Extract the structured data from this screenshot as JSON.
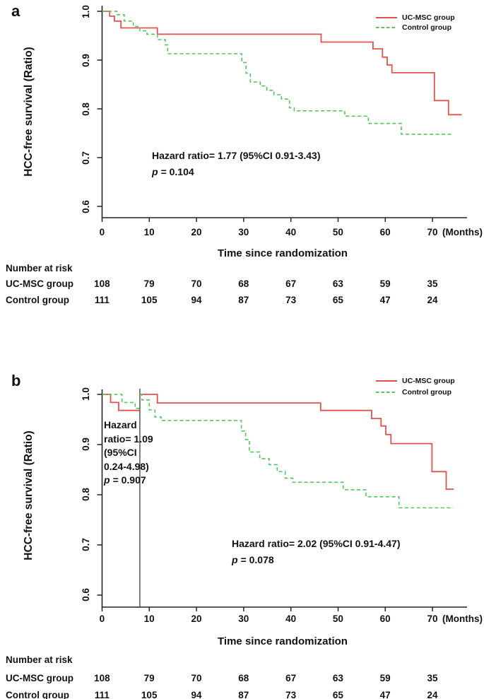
{
  "figure_labels": {
    "panel_a_letter": "a",
    "panel_b_letter": "b"
  },
  "legend": {
    "ucmsc": "UC-MSC group",
    "control": "Control group"
  },
  "axis_titles": {
    "y": "HCC-free survival (Ratio)",
    "x": "Time since randomization",
    "months": "(Months)"
  },
  "annotations": {
    "a": {
      "line1": "Hazard ratio= 1.77 (95%CI 0.91-3.43)",
      "p_label": "p",
      "p_value": "= 0.104"
    },
    "b_left": {
      "lines": [
        "Hazard",
        "ratio= 1.09",
        "(95%CI",
        "0.24-4.98)"
      ],
      "p_label": "p",
      "p_value": "= 0.907"
    },
    "b_right": {
      "line1": "Hazard ratio= 2.02 (95%CI 0.91-4.47)",
      "p_label": "p",
      "p_value": "= 0.078"
    }
  },
  "at_risk": {
    "title": "Number at risk",
    "rows": [
      {
        "label": "UC-MSC group",
        "values": [
          108,
          79,
          70,
          68,
          67,
          63,
          59,
          35
        ]
      },
      {
        "label": "Control group",
        "values": [
          111,
          105,
          94,
          87,
          73,
          65,
          47,
          24
        ]
      }
    ]
  },
  "chart_data": [
    {
      "type": "line",
      "subtype": "kaplan-meier-step",
      "panel": "a",
      "title": "a",
      "xlabel": "Time since randomization",
      "x_unit": "(Months)",
      "ylabel": "HCC-free survival (Ratio)",
      "x_ticks": [
        "0",
        "10",
        "20",
        "30",
        "40",
        "50",
        "60",
        "70"
      ],
      "y_ticks": [
        "1.0",
        "0.9",
        "0.8",
        "0.7",
        "0.6"
      ],
      "xlim": [
        0,
        77.5
      ],
      "ylim": [
        0.58,
        1.0
      ],
      "grid": false,
      "legend_position": "top-right",
      "annotations": [
        "Hazard ratio= 1.77 (95%CI 0.91-3.43)",
        "p = 0.104"
      ],
      "series": [
        {
          "name": "UC-MSC group",
          "color": "#e3524e",
          "line_style": "solid",
          "n": 108,
          "segments": [
            {
              "points": [
                [
                  0,
                  1.0
                ],
                [
                  1.6,
                  0.99
                ],
                [
                  2.6,
                  0.98
                ],
                [
                  4,
                  0.966
                ],
                [
                  11.7,
                  0.953
                ],
                [
                  46.4,
                  0.937
                ],
                [
                  57.4,
                  0.923
                ],
                [
                  59.4,
                  0.906
                ],
                [
                  60.4,
                  0.89
                ],
                [
                  61.4,
                  0.874
                ],
                [
                  70.4,
                  0.817
                ],
                [
                  73.4,
                  0.788
                ]
              ],
              "x_end": 76.2
            }
          ]
        },
        {
          "name": "Control group",
          "color": "#53c65c",
          "line_style": "dashed",
          "n": 111,
          "segments": [
            {
              "points": [
                [
                  0,
                  1.0
                ],
                [
                  3.1,
                  0.993
                ],
                [
                  4.7,
                  0.98
                ],
                [
                  6.6,
                  0.969
                ],
                [
                  8,
                  0.96
                ],
                [
                  9.5,
                  0.953
                ],
                [
                  11.7,
                  0.942
                ],
                [
                  13.4,
                  0.931
                ],
                [
                  13.9,
                  0.913
                ],
                [
                  29.6,
                  0.895
                ],
                [
                  30.5,
                  0.873
                ],
                [
                  31.4,
                  0.855
                ],
                [
                  33.5,
                  0.847
                ],
                [
                  34.9,
                  0.838
                ],
                [
                  36.4,
                  0.829
                ],
                [
                  38,
                  0.82
                ],
                [
                  39.7,
                  0.802
                ],
                [
                  40.7,
                  0.796
                ],
                [
                  51.4,
                  0.785
                ],
                [
                  56.4,
                  0.77
                ],
                [
                  63.4,
                  0.748
                ]
              ],
              "x_end": 74.4
            }
          ]
        }
      ]
    },
    {
      "type": "line",
      "subtype": "kaplan-meier-step-landmark",
      "panel": "b",
      "title": "b",
      "xlabel": "Time since randomization",
      "x_unit": "(Months)",
      "ylabel": "HCC-free survival (Ratio)",
      "x_ticks": [
        "0",
        "10",
        "20",
        "30",
        "40",
        "50",
        "60",
        "70"
      ],
      "y_ticks": [
        "1.0",
        "0.9",
        "0.8",
        "0.7",
        "0.6"
      ],
      "xlim": [
        0,
        77.5
      ],
      "ylim": [
        0.58,
        1.0
      ],
      "grid": false,
      "legend_position": "top-right",
      "reference_line_x": 8,
      "annotations": [
        "Hazard ratio= 1.09 (95%CI 0.24-4.98)",
        "p = 0.907",
        "Hazard ratio= 2.02 (95%CI 0.91-4.47)",
        "p = 0.078"
      ],
      "series": [
        {
          "name": "UC-MSC group",
          "color": "#e3524e",
          "line_style": "solid",
          "n": 108,
          "segments": [
            {
              "points": [
                [
                  0,
                  1.0
                ],
                [
                  1.8,
                  0.984
                ],
                [
                  3.5,
                  0.968
                ]
              ],
              "x_end": 8
            },
            {
              "points": [
                [
                  8,
                  1.0
                ],
                [
                  11.7,
                  0.983
                ],
                [
                  46.3,
                  0.968
                ],
                [
                  57.1,
                  0.952
                ],
                [
                  59.1,
                  0.937
                ],
                [
                  60.1,
                  0.92
                ],
                [
                  61.2,
                  0.902
                ],
                [
                  69.9,
                  0.846
                ],
                [
                  72.9,
                  0.811
                ]
              ],
              "x_end": 74.5
            }
          ]
        },
        {
          "name": "Control group",
          "color": "#53c65c",
          "line_style": "dashed",
          "n": 111,
          "segments": [
            {
              "points": [
                [
                  0,
                  1.0
                ],
                [
                  4.2,
                  0.984
                ],
                [
                  7,
                  0.972
                ]
              ],
              "x_end": 8
            },
            {
              "points": [
                [
                  8,
                  1.0
                ],
                [
                  8.4,
                  0.989
                ],
                [
                  10,
                  0.969
                ],
                [
                  11.2,
                  0.955
                ],
                [
                  12.5,
                  0.948
                ],
                [
                  29.5,
                  0.927
                ],
                [
                  30.4,
                  0.91
                ],
                [
                  31.2,
                  0.885
                ],
                [
                  33.4,
                  0.872
                ],
                [
                  35.4,
                  0.86
                ],
                [
                  37.1,
                  0.846
                ],
                [
                  38.8,
                  0.833
                ],
                [
                  40.4,
                  0.825
                ],
                [
                  51.1,
                  0.81
                ],
                [
                  55.9,
                  0.796
                ],
                [
                  62.9,
                  0.774
                ]
              ],
              "x_end": 74.4
            }
          ]
        }
      ]
    }
  ]
}
